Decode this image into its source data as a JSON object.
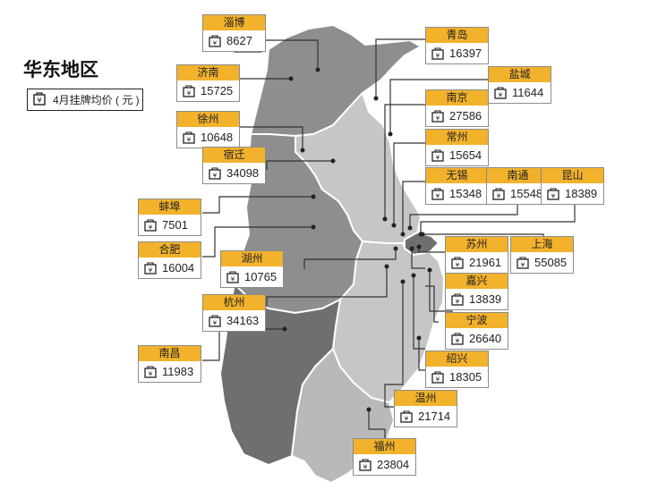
{
  "title": "华东地区",
  "legend": {
    "label": "4月挂牌均价 ( 元 )",
    "icon": "price-tag-icon"
  },
  "colors": {
    "label_header": "#f2b22c",
    "region_light": "#c4c4c4",
    "region_mid": "#8e8e8e",
    "region_dark": "#6f6f6f"
  },
  "cities": [
    {
      "name": "淄博",
      "value": "8627"
    },
    {
      "name": "济南",
      "value": "15725"
    },
    {
      "name": "徐州",
      "value": "10648"
    },
    {
      "name": "宿迁",
      "value": "34098"
    },
    {
      "name": "蚌埠",
      "value": "7501"
    },
    {
      "name": "合肥",
      "value": "16004"
    },
    {
      "name": "湖州",
      "value": "10765"
    },
    {
      "name": "杭州",
      "value": "34163"
    },
    {
      "name": "南昌",
      "value": "11983"
    },
    {
      "name": "青岛",
      "value": "16397"
    },
    {
      "name": "盐城",
      "value": "11644"
    },
    {
      "name": "南京",
      "value": "27586"
    },
    {
      "name": "常州",
      "value": "15654"
    },
    {
      "name": "无锡",
      "value": "15348"
    },
    {
      "name": "南通",
      "value": "15548"
    },
    {
      "name": "昆山",
      "value": "18389"
    },
    {
      "name": "苏州",
      "value": "21961"
    },
    {
      "name": "上海",
      "value": "55085"
    },
    {
      "name": "嘉兴",
      "value": "13839"
    },
    {
      "name": "宁波",
      "value": "26640"
    },
    {
      "name": "绍兴",
      "value": "18305"
    },
    {
      "name": "温州",
      "value": "21714"
    },
    {
      "name": "福州",
      "value": "23804"
    }
  ]
}
